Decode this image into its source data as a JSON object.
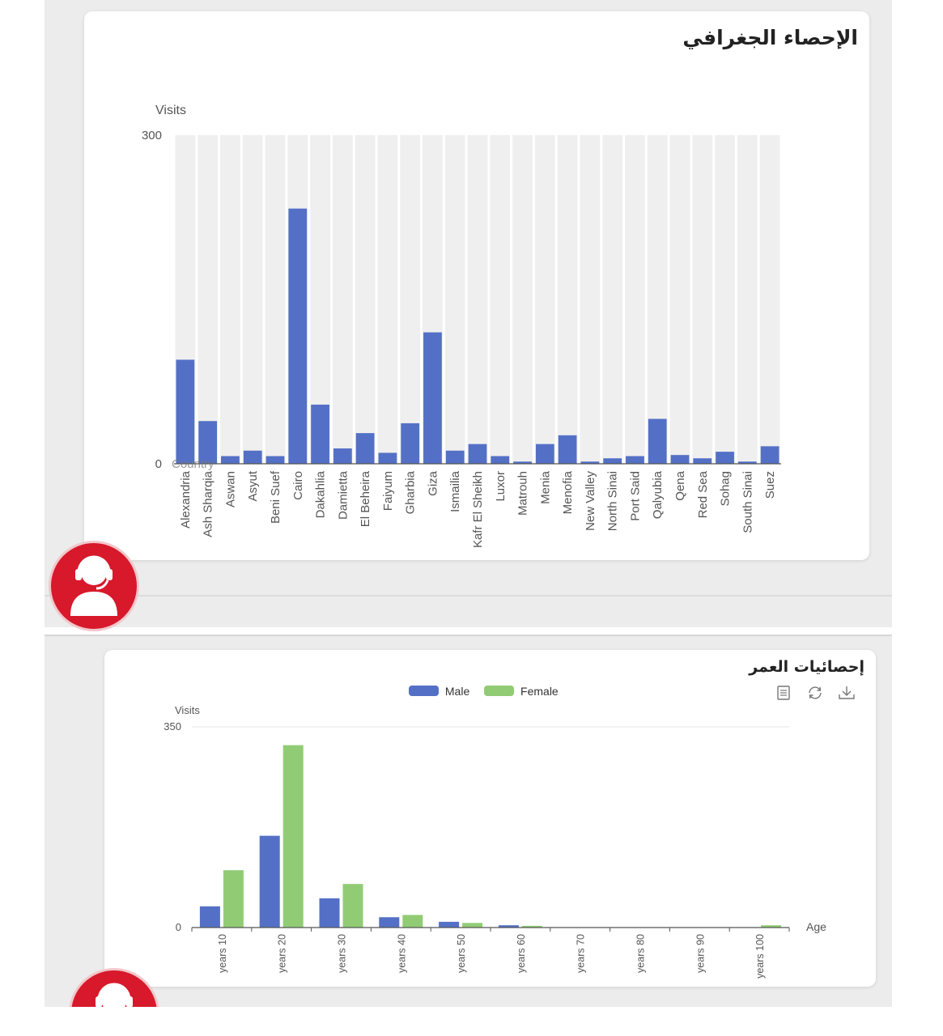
{
  "geo": {
    "title": "الإحصاء الجغرافي",
    "chart_data": {
      "type": "bar",
      "ylabel": "Visits",
      "xlabel": "",
      "ylim": [
        0,
        300
      ],
      "ytick_labels": [
        "0",
        "300"
      ],
      "overlay_text": "Country",
      "categories": [
        "Alexandria",
        "Ash Sharqia",
        "Aswan",
        "Asyut",
        "Beni Suef",
        "Cairo",
        "Dakahlia",
        "Damietta",
        "El Beheira",
        "Faiyum",
        "Gharbia",
        "Giza",
        "Ismailia",
        "Kafr El Sheikh",
        "Luxor",
        "Matrouh",
        "Menia",
        "Menofia",
        "New Valley",
        "North Sinai",
        "Port Said",
        "Qalyubia",
        "Qena",
        "Red Sea",
        "Sohag",
        "South Sinai",
        "Suez"
      ],
      "values": [
        95,
        39,
        7,
        12,
        7,
        233,
        54,
        14,
        28,
        10,
        37,
        120,
        12,
        18,
        7,
        2,
        18,
        26,
        2,
        5,
        7,
        41,
        8,
        5,
        11,
        2,
        16
      ],
      "colors": {
        "bar": "#5470c6",
        "band": "#efefef"
      }
    }
  },
  "age": {
    "title": "إحصائيات العمر",
    "toolbar": {
      "icons": [
        "data-view-icon",
        "refresh-icon",
        "download-icon"
      ]
    },
    "chart_data": {
      "type": "bar",
      "ylabel": "Visits",
      "xlabel": "Age",
      "ylim": [
        0,
        350
      ],
      "ytick_labels": [
        "0",
        "350"
      ],
      "legend_position": "top-center",
      "categories": [
        "years 10",
        "years 20",
        "years 30",
        "years 40",
        "years 50",
        "years 60",
        "years 70",
        "years 80",
        "years 90",
        "years 100"
      ],
      "series": [
        {
          "name": "Male",
          "color": "#5470c6",
          "values": [
            37,
            160,
            51,
            18,
            10,
            4,
            0,
            0,
            0,
            0
          ]
        },
        {
          "name": "Female",
          "color": "#91cc75",
          "values": [
            100,
            318,
            76,
            22,
            8,
            3,
            0,
            0,
            0,
            4
          ]
        }
      ]
    }
  }
}
